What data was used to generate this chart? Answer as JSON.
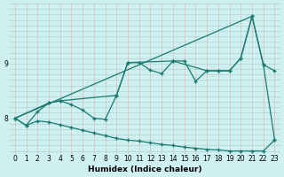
{
  "xlabel": "Humidex (Indice chaleur)",
  "bg_color": "#cff0f0",
  "line_color": "#1a7a6e",
  "grid_color_h": "#aed4d4",
  "grid_color_v": "#e0b8b8",
  "curve1_x": [
    0,
    1,
    2,
    3,
    4,
    5,
    6,
    7,
    8,
    9,
    10,
    11,
    12,
    13,
    14,
    15,
    16,
    17,
    18,
    19,
    20,
    21,
    22,
    23
  ],
  "curve1_y": [
    8.0,
    7.87,
    8.12,
    8.28,
    8.32,
    8.25,
    8.15,
    8.0,
    7.98,
    8.42,
    9.02,
    9.02,
    8.88,
    8.82,
    9.05,
    9.05,
    8.68,
    8.87,
    8.87,
    8.87,
    9.1,
    9.87,
    8.98,
    8.87
  ],
  "curve2_x": [
    0,
    3,
    4,
    9,
    10,
    14,
    17,
    18,
    19,
    20,
    21,
    22,
    23
  ],
  "curve2_y": [
    8.0,
    8.28,
    8.32,
    8.42,
    9.02,
    9.05,
    8.87,
    8.87,
    8.87,
    9.1,
    9.87,
    8.98,
    7.6
  ],
  "diag_line_x": [
    0,
    21
  ],
  "diag_line_y": [
    8.0,
    9.87
  ],
  "bottom_line_x": [
    0,
    1,
    2,
    3,
    4,
    5,
    6,
    7,
    8,
    9,
    10,
    11,
    12,
    13,
    14,
    15,
    16,
    17,
    18,
    19,
    20,
    21,
    22,
    23
  ],
  "bottom_line_y": [
    8.0,
    7.87,
    7.95,
    7.93,
    7.88,
    7.83,
    7.78,
    7.73,
    7.68,
    7.63,
    7.6,
    7.58,
    7.55,
    7.52,
    7.5,
    7.47,
    7.45,
    7.43,
    7.42,
    7.4,
    7.4,
    7.4,
    7.4,
    7.6
  ],
  "ylim": [
    7.35,
    10.1
  ],
  "xlim": [
    -0.5,
    23.5
  ],
  "yticks": [
    8,
    9
  ],
  "xticks": [
    0,
    1,
    2,
    3,
    4,
    5,
    6,
    7,
    8,
    9,
    10,
    11,
    12,
    13,
    14,
    15,
    16,
    17,
    18,
    19,
    20,
    21,
    22,
    23
  ],
  "tick_fontsize": 5.5,
  "xlabel_fontsize": 6.5
}
